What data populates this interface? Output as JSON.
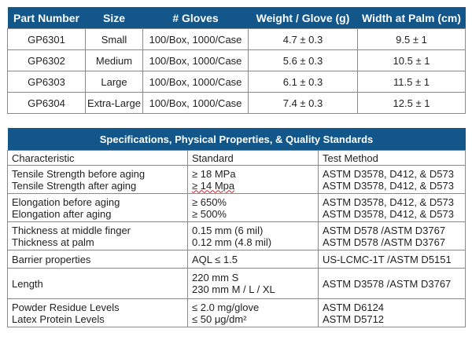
{
  "glove_table": {
    "headers": [
      "Part Number",
      "Size",
      "# Gloves",
      "Weight / Glove (g)",
      "Width at Palm (cm)"
    ],
    "rows": [
      [
        "GP6301",
        "Small",
        "100/Box, 1000/Case",
        "4.7 ± 0.3",
        "9.5 ± 1"
      ],
      [
        "GP6302",
        "Medium",
        "100/Box, 1000/Case",
        "5.6 ± 0.3",
        "10.5 ± 1"
      ],
      [
        "GP6303",
        "Large",
        "100/Box, 1000/Case",
        "6.1 ± 0.3",
        "11.5 ± 1"
      ],
      [
        "GP6304",
        "Extra-Large",
        "100/Box, 1000/Case",
        "7.4 ± 0.3",
        "12.5 ± 1"
      ]
    ]
  },
  "spec_table": {
    "title": "Specifications, Physical Properties, & Quality Standards",
    "headers": [
      "Characteristic",
      "Standard",
      "Test Method"
    ],
    "rows": [
      {
        "characteristic": [
          "Tensile Strength before aging",
          "Tensile Strength after aging"
        ],
        "standard": [
          "≥ 18 MPa",
          "≥ 14 Mpa"
        ],
        "method": [
          "ASTM D3578, D412, & D573",
          "ASTM D3578, D412, & D573"
        ]
      },
      {
        "characteristic": [
          "Elongation before aging",
          "Elongation after aging"
        ],
        "standard": [
          "≥ 650%",
          "≥ 500%"
        ],
        "method": [
          "ASTM D3578, D412, & D573",
          "ASTM D3578, D412, & D573"
        ]
      },
      {
        "characteristic": [
          "Thickness at middle finger",
          "Thickness at palm"
        ],
        "standard": [
          "0.15 mm (6 mil)",
          "0.12 mm (4.8 mil)"
        ],
        "method": [
          "ASTM D578 /ASTM D3767",
          "ASTM D578 /ASTM D3767"
        ]
      },
      {
        "characteristic": [
          "Barrier properties"
        ],
        "standard": [
          "AQL ≤ 1.5"
        ],
        "method": [
          "US-LCMC-1T /ASTM D5151"
        ]
      },
      {
        "characteristic": [
          "Length"
        ],
        "standard": [
          "220 mm S",
          "230 mm M / L / XL"
        ],
        "method": [
          "ASTM D3578 /ASTM D3767"
        ]
      },
      {
        "characteristic": [
          "Powder Residue Levels",
          "Latex Protein Levels"
        ],
        "standard": [
          "≤ 2.0 mg/glove",
          "≤ 50 μg/dm²"
        ],
        "method": [
          "ASTM D6124",
          "ASTM D5712"
        ]
      }
    ]
  }
}
